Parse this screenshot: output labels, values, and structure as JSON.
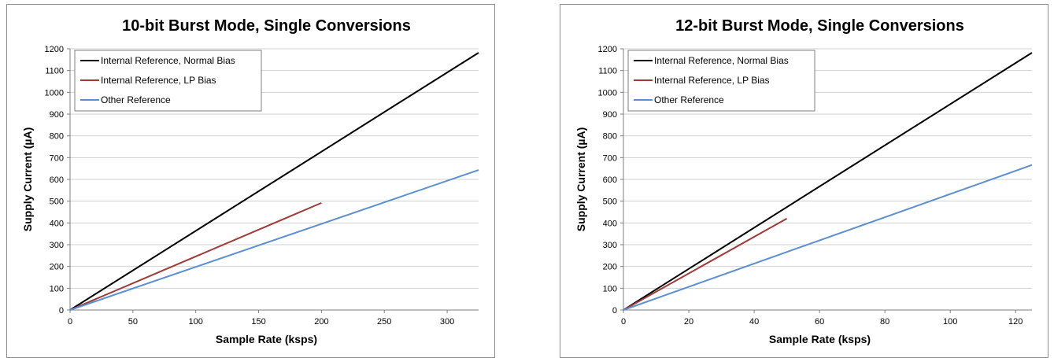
{
  "chart_data": [
    {
      "type": "line",
      "title": "10-bit Burst Mode, Single Conversions",
      "xlabel": "Sample Rate (ksps)",
      "ylabel": "Supply Current (µA)",
      "xlim": [
        0,
        325
      ],
      "ylim": [
        0,
        1200
      ],
      "xticks": [
        "0",
        "50",
        "100",
        "150",
        "200",
        "250",
        "300"
      ],
      "yticks": [
        "0",
        "100",
        "200",
        "300",
        "400",
        "500",
        "600",
        "700",
        "800",
        "900",
        "1000",
        "1100",
        "1200"
      ],
      "grid": "horizontal",
      "legend_position": "top-left",
      "series": [
        {
          "name": "Internal Reference, Normal Bias",
          "color": "#000000",
          "x": [
            0,
            325
          ],
          "y": [
            0,
            1182
          ]
        },
        {
          "name": "Internal Reference, LP Bias",
          "color": "#9e3b36",
          "x": [
            0,
            200
          ],
          "y": [
            0,
            492
          ]
        },
        {
          "name": "Other Reference",
          "color": "#5b8fd0",
          "x": [
            0,
            325
          ],
          "y": [
            0,
            643
          ]
        }
      ]
    },
    {
      "type": "line",
      "title": "12-bit Burst Mode, Single Conversions",
      "xlabel": "Sample Rate (ksps)",
      "ylabel": "Supply Current (µA)",
      "xlim": [
        0,
        125
      ],
      "ylim": [
        0,
        1200
      ],
      "xticks": [
        "0",
        "20",
        "40",
        "60",
        "80",
        "100",
        "120"
      ],
      "yticks": [
        "0",
        "100",
        "200",
        "300",
        "400",
        "500",
        "600",
        "700",
        "800",
        "900",
        "1000",
        "1100",
        "1200"
      ],
      "grid": "horizontal",
      "legend_position": "top-left",
      "series": [
        {
          "name": "Internal Reference, Normal Bias",
          "color": "#000000",
          "x": [
            0,
            125
          ],
          "y": [
            0,
            1182
          ]
        },
        {
          "name": "Internal Reference, LP Bias",
          "color": "#9e3b36",
          "x": [
            0,
            50
          ],
          "y": [
            0,
            420
          ]
        },
        {
          "name": "Other Reference",
          "color": "#5b8fd0",
          "x": [
            0,
            125
          ],
          "y": [
            0,
            666
          ]
        }
      ]
    }
  ]
}
